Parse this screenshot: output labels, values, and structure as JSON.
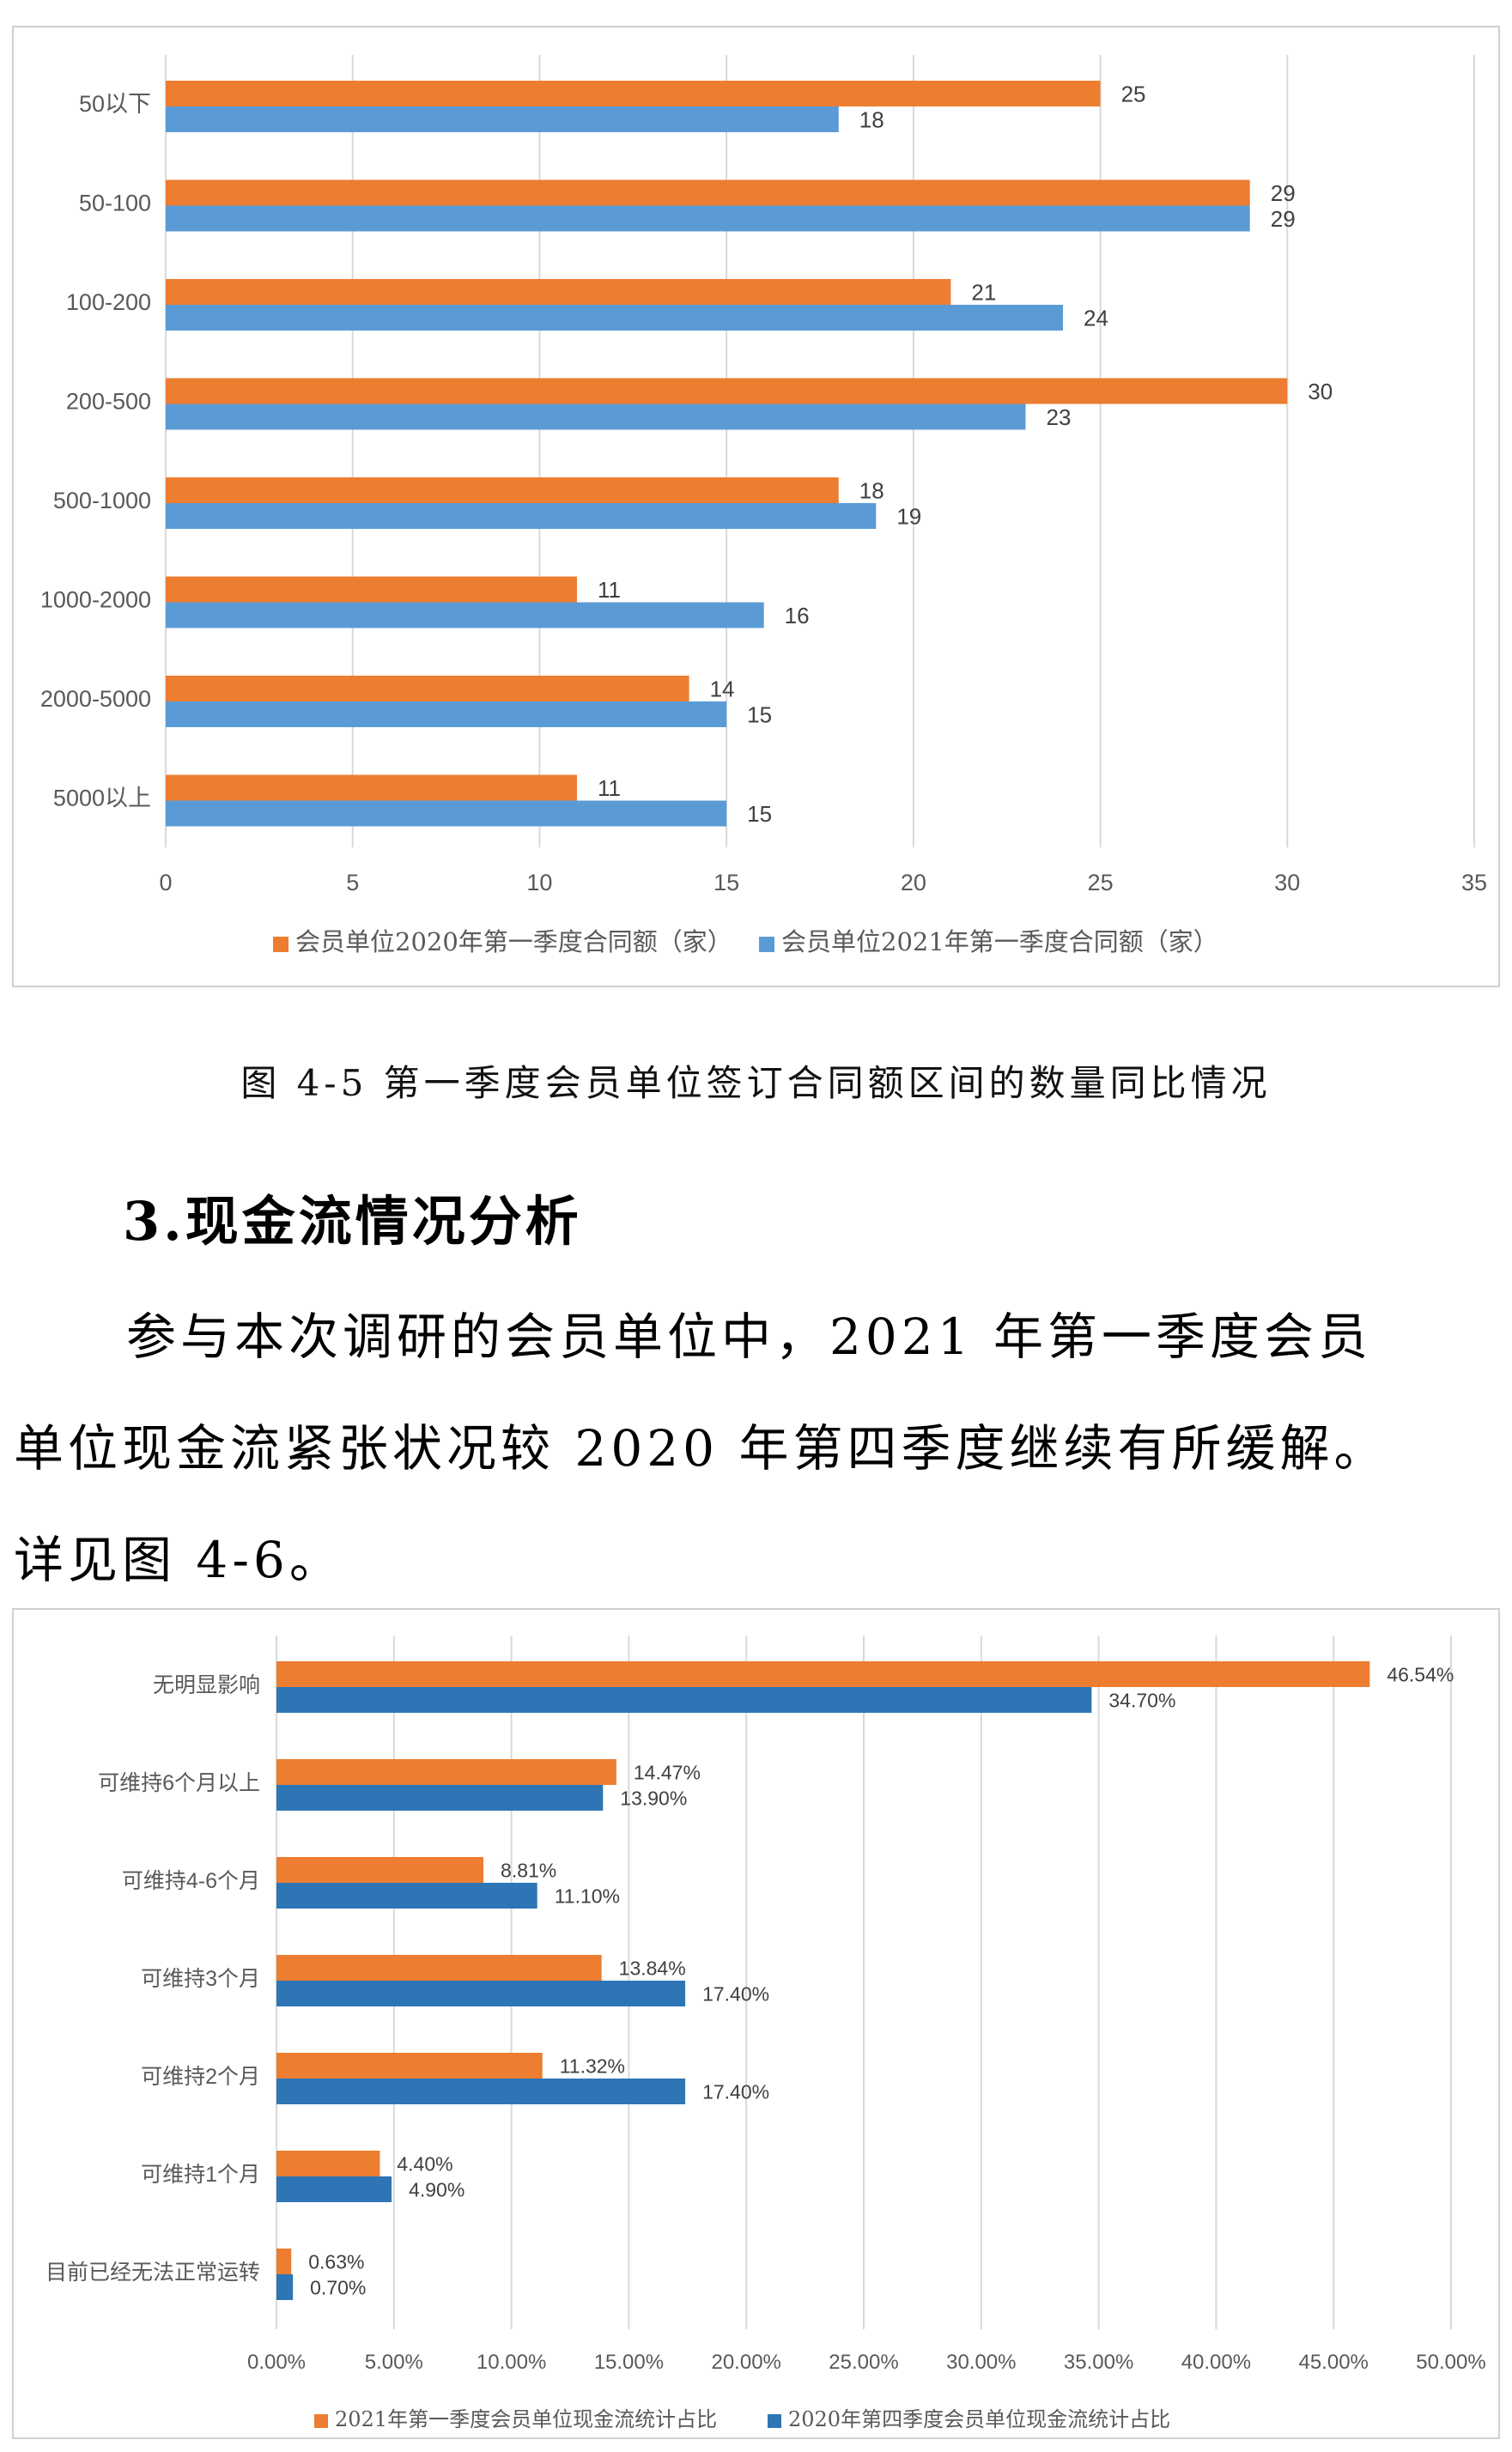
{
  "chart_data": [
    {
      "type": "bar",
      "orientation": "horizontal",
      "categories": [
        "50以下",
        "50-100",
        "100-200",
        "200-500",
        "500-1000",
        "1000-2000",
        "2000-5000",
        "5000以上"
      ],
      "series": [
        {
          "name": "会员单位2020年第一季度合同额（家）",
          "values": [
            25,
            29,
            21,
            30,
            18,
            11,
            14,
            11
          ],
          "labels": [
            "25",
            "29",
            "21",
            "30",
            "18",
            "11",
            "14",
            "11"
          ],
          "color": "#ED7D31"
        },
        {
          "name": "会员单位2021年第一季度合同额（家）",
          "values": [
            18,
            29,
            24,
            23,
            19,
            16,
            15,
            15
          ],
          "labels": [
            "18",
            "29",
            "24",
            "23",
            "19",
            "16",
            "15",
            "15"
          ],
          "color": "#5B9BD5"
        }
      ],
      "xlim": [
        0,
        35
      ],
      "xticks": [
        "0",
        "5",
        "10",
        "15",
        "20",
        "25",
        "30",
        "35"
      ],
      "grid": true,
      "legend_position": "bottom"
    },
    {
      "type": "bar",
      "orientation": "horizontal",
      "categories": [
        "无明显影响",
        "可维持6个月以上",
        "可维持4-6个月",
        "可维持3个月",
        "可维持2个月",
        "可维持1个月",
        "目前已经无法正常运转"
      ],
      "series": [
        {
          "name": "2021年第一季度会员单位现金流统计占比",
          "values": [
            46.54,
            14.47,
            8.81,
            13.84,
            11.32,
            4.4,
            0.63
          ],
          "labels": [
            "46.54%",
            "14.47%",
            "8.81%",
            "13.84%",
            "11.32%",
            "4.40%",
            "0.63%"
          ],
          "color": "#ED7D31"
        },
        {
          "name": "2020年第四季度会员单位现金流统计占比",
          "values": [
            34.7,
            13.9,
            11.1,
            17.4,
            17.4,
            4.9,
            0.7
          ],
          "labels": [
            "34.70%",
            "13.90%",
            "11.10%",
            "17.40%",
            "17.40%",
            "4.90%",
            "0.70%"
          ],
          "color": "#2E75B6"
        }
      ],
      "xlim": [
        0,
        50
      ],
      "xticks": [
        "0.00%",
        "5.00%",
        "10.00%",
        "15.00%",
        "20.00%",
        "25.00%",
        "30.00%",
        "35.00%",
        "40.00%",
        "45.00%",
        "50.00%"
      ],
      "grid": true,
      "legend_position": "bottom"
    }
  ],
  "caption": "图 4-5 第一季度会员单位签订合同额区间的数量同比情况",
  "section_title": "3.现金流情况分析",
  "paragraph": {
    "line1": "参与本次调研的会员单位中，2021 年第一季度会员",
    "line2": "单位现金流紧张状况较 2020 年第四季度继续有所缓解。",
    "line3": "详见图 4-6。"
  }
}
